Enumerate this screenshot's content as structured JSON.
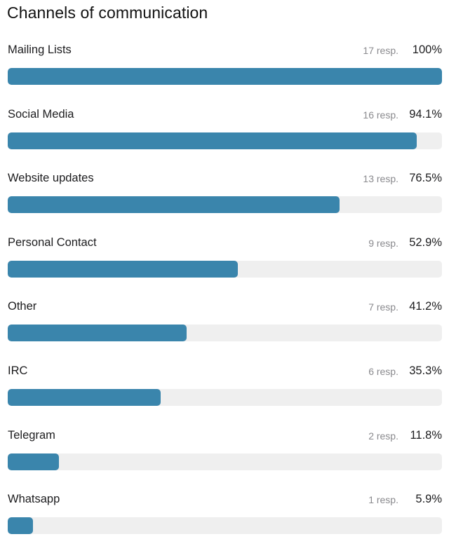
{
  "chart_data": {
    "type": "bar",
    "orientation": "horizontal",
    "title": "Channels of communication",
    "bar_color": "#3a85ac",
    "track_color": "#efefef",
    "max": 17,
    "items": [
      {
        "label": "Mailing Lists",
        "responses": "17 resp.",
        "percent": "100%",
        "value": 17,
        "fraction": 1.0
      },
      {
        "label": "Social Media",
        "responses": "16 resp.",
        "percent": "94.1%",
        "value": 16,
        "fraction": 0.941
      },
      {
        "label": "Website updates",
        "responses": "13 resp.",
        "percent": "76.5%",
        "value": 13,
        "fraction": 0.765
      },
      {
        "label": "Personal Contact",
        "responses": "9 resp.",
        "percent": "52.9%",
        "value": 9,
        "fraction": 0.529
      },
      {
        "label": "Other",
        "responses": "7 resp.",
        "percent": "41.2%",
        "value": 7,
        "fraction": 0.412
      },
      {
        "label": "IRC",
        "responses": "6 resp.",
        "percent": "35.3%",
        "value": 6,
        "fraction": 0.353
      },
      {
        "label": "Telegram",
        "responses": "2 resp.",
        "percent": "11.8%",
        "value": 2,
        "fraction": 0.118
      },
      {
        "label": "Whatsapp",
        "responses": "1 resp.",
        "percent": "5.9%",
        "value": 1,
        "fraction": 0.059
      }
    ]
  }
}
